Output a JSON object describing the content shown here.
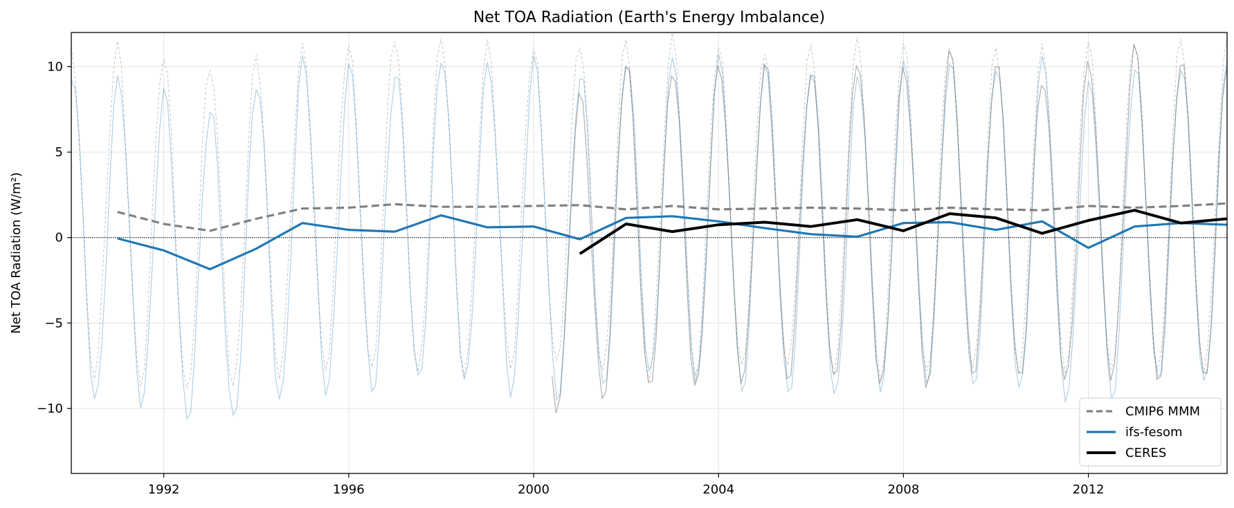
{
  "chart_data": {
    "type": "line",
    "title": "Net TOA Radiation (Earth's Energy Imbalance)",
    "xlabel": "",
    "ylabel": "Net TOA Radiation (W/m²)",
    "xlim": [
      1990.0,
      2015.0
    ],
    "ylim": [
      -13.8,
      12.0
    ],
    "xticks": [
      1992,
      1996,
      2000,
      2004,
      2008,
      2012
    ],
    "yticks": [
      -10,
      -5,
      0,
      5,
      10
    ],
    "grid": true,
    "zero_line": true,
    "legend_position": "lower-right",
    "legend": [
      "CMIP6 MMM",
      "ifs-fesom",
      "CERES"
    ],
    "seasonal_amplitude": {
      "cmip6": 9.6,
      "ifs_fesom": 9.5,
      "ceres": 9.3
    },
    "series": [
      {
        "name": "CMIP6 MMM",
        "color": "#808080",
        "style": "dashed",
        "x": [
          1991,
          1992,
          1993,
          1994,
          1995,
          1996,
          1997,
          1998,
          1999,
          2000,
          2001,
          2002,
          2003,
          2004,
          2005,
          2006,
          2007,
          2008,
          2009,
          2010,
          2011,
          2012,
          2013,
          2014,
          2015
        ],
        "values": [
          1.5,
          0.8,
          0.4,
          1.1,
          1.7,
          1.75,
          1.95,
          1.8,
          1.8,
          1.85,
          1.9,
          1.65,
          1.85,
          1.65,
          1.7,
          1.75,
          1.7,
          1.6,
          1.75,
          1.65,
          1.6,
          1.85,
          1.75,
          1.85,
          2.0
        ]
      },
      {
        "name": "ifs-fesom",
        "color": "#1f77b4",
        "style": "solid",
        "x": [
          1991,
          1992,
          1993,
          1994,
          1995,
          1996,
          1997,
          1998,
          1999,
          2000,
          2001,
          2002,
          2003,
          2004,
          2005,
          2006,
          2007,
          2008,
          2009,
          2010,
          2011,
          2012,
          2013,
          2014,
          2015
        ],
        "values": [
          -0.05,
          -0.75,
          -1.85,
          -0.65,
          0.85,
          0.45,
          0.35,
          1.3,
          0.6,
          0.65,
          -0.1,
          1.15,
          1.25,
          0.95,
          0.55,
          0.2,
          0.05,
          0.85,
          0.9,
          0.45,
          0.95,
          -0.6,
          0.65,
          0.85,
          0.75
        ]
      },
      {
        "name": "CERES",
        "color": "#000000",
        "style": "solid",
        "x": [
          2001,
          2002,
          2003,
          2004,
          2005,
          2006,
          2007,
          2008,
          2009,
          2010,
          2011,
          2012,
          2013,
          2014,
          2015
        ],
        "values": [
          -0.95,
          0.8,
          0.35,
          0.75,
          0.9,
          0.65,
          1.05,
          0.4,
          1.4,
          1.15,
          0.25,
          1.0,
          1.6,
          0.85,
          1.1
        ]
      }
    ]
  }
}
